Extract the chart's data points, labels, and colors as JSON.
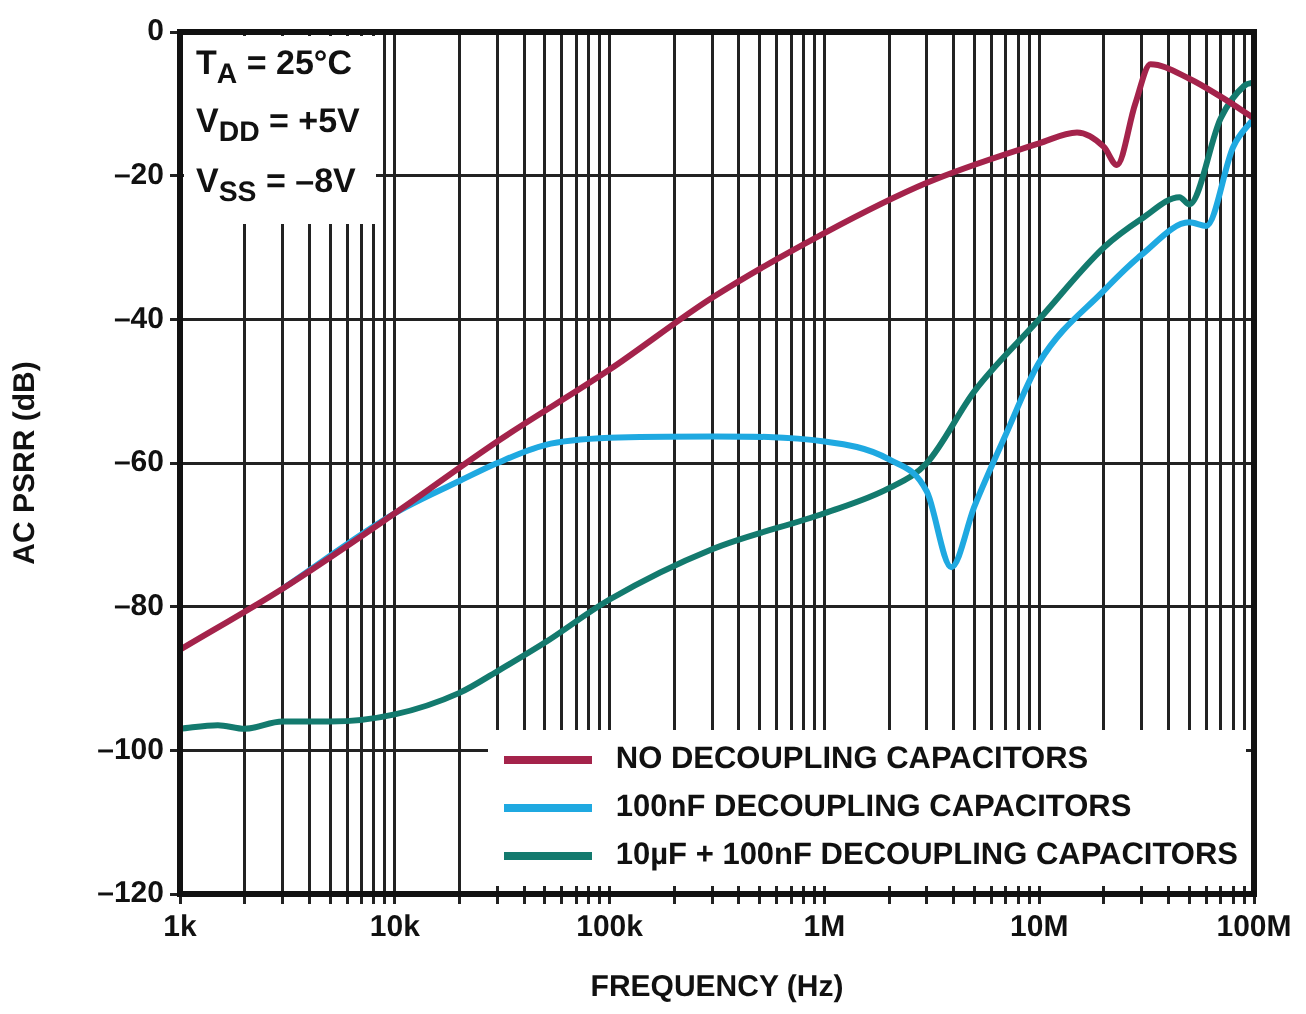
{
  "chart_data": {
    "type": "line",
    "xlabel": "FREQUENCY (Hz)",
    "ylabel": "AC PSRR (dB)",
    "log": "x",
    "grid": true,
    "legend": "bottom right",
    "annotations": [
      "T$_{A}$ = 25°C",
      "V$_{DD}$ = +5V",
      "V$_{SS}$ = –8V"
    ],
    "xlim": [
      1000,
      100000000
    ],
    "xticks": [
      {
        "value": 1000,
        "label": "1k"
      },
      {
        "value": 2000,
        "label": null
      },
      {
        "value": 3000,
        "label": null
      },
      {
        "value": 4000,
        "label": null
      },
      {
        "value": 5000,
        "label": null
      },
      {
        "value": 6000,
        "label": null
      },
      {
        "value": 7000,
        "label": null
      },
      {
        "value": 8000,
        "label": null
      },
      {
        "value": 9000,
        "label": null
      },
      {
        "value": 10000,
        "label": "10k"
      },
      {
        "value": 20000,
        "label": null
      },
      {
        "value": 30000,
        "label": null
      },
      {
        "value": 40000,
        "label": null
      },
      {
        "value": 50000,
        "label": null
      },
      {
        "value": 60000,
        "label": null
      },
      {
        "value": 70000,
        "label": null
      },
      {
        "value": 80000,
        "label": null
      },
      {
        "value": 90000,
        "label": null
      },
      {
        "value": 100000,
        "label": "100k"
      },
      {
        "value": 200000,
        "label": null
      },
      {
        "value": 300000,
        "label": null
      },
      {
        "value": 400000,
        "label": null
      },
      {
        "value": 500000,
        "label": null
      },
      {
        "value": 600000,
        "label": null
      },
      {
        "value": 700000,
        "label": null
      },
      {
        "value": 800000,
        "label": null
      },
      {
        "value": 900000,
        "label": null
      },
      {
        "value": 1000000,
        "label": "1M"
      },
      {
        "value": 2000000,
        "label": null
      },
      {
        "value": 3000000,
        "label": null
      },
      {
        "value": 4000000,
        "label": null
      },
      {
        "value": 5000000,
        "label": null
      },
      {
        "value": 6000000,
        "label": null
      },
      {
        "value": 7000000,
        "label": null
      },
      {
        "value": 8000000,
        "label": null
      },
      {
        "value": 9000000,
        "label": null
      },
      {
        "value": 10000000,
        "label": "10M"
      },
      {
        "value": 20000000,
        "label": null
      },
      {
        "value": 30000000,
        "label": null
      },
      {
        "value": 40000000,
        "label": null
      },
      {
        "value": 50000000,
        "label": null
      },
      {
        "value": 60000000,
        "label": null
      },
      {
        "value": 70000000,
        "label": null
      },
      {
        "value": 80000000,
        "label": null
      },
      {
        "value": 90000000,
        "label": null
      },
      {
        "value": 100000000,
        "label": "100M"
      }
    ],
    "ylim": [
      -120,
      0
    ],
    "yticks": [
      {
        "value": -120,
        "label": "–120"
      },
      {
        "value": -100,
        "label": "–100"
      },
      {
        "value": -80,
        "label": "–80"
      },
      {
        "value": -60,
        "label": "–60"
      },
      {
        "value": -40,
        "label": "–40"
      },
      {
        "value": -20,
        "label": "–20"
      },
      0
    ],
    "series": [
      {
        "name": "NO DECOUPLING CAPACITORS",
        "color": "#a4234b",
        "x": [
          1000,
          3000,
          10000,
          30000,
          100000,
          300000,
          1000000,
          3000000,
          10000000,
          15000000,
          20000000,
          23000000,
          28000000,
          33000000,
          50000000,
          70000000,
          100000000
        ],
        "values": [
          -86,
          -77.5,
          -67,
          -57,
          -47,
          -37,
          -28,
          -21,
          -15.5,
          -14,
          -16,
          -18.5,
          -10,
          -4.5,
          -6.5,
          -9,
          -12
        ]
      },
      {
        "name": "100nF DECOUPLING CAPACITORS",
        "color": "#1fa9e1",
        "x": [
          3000,
          10000,
          20000,
          30000,
          50000,
          100000,
          300000,
          1000000,
          2000000,
          3000000,
          3900000,
          5000000,
          7000000,
          10000000,
          20000000,
          30000000,
          50000000,
          60000000,
          80000000,
          100000000
        ],
        "values": [
          -77.5,
          -67,
          -62.5,
          -60,
          -57.5,
          -56.5,
          -56.3,
          -57,
          -59.5,
          -64,
          -74.5,
          -66,
          -56,
          -46,
          -36,
          -31,
          -26.5,
          -27,
          -16,
          -12
        ]
      },
      {
        "name": "10µF + 100nF DECOUPLING CAPACITORS",
        "color": "#137a6e",
        "x": [
          1000,
          1500,
          2000,
          3000,
          5000,
          10000,
          20000,
          30000,
          50000,
          100000,
          300000,
          1000000,
          2000000,
          3000000,
          5000000,
          10000000,
          20000000,
          30000000,
          45000000,
          50000000,
          70000000,
          90000000,
          100000000
        ],
        "values": [
          -97,
          -96.5,
          -97,
          -96,
          -96,
          -95,
          -92,
          -89,
          -85,
          -79,
          -72,
          -67,
          -63.5,
          -60,
          -50,
          -40,
          -30,
          -26,
          -23,
          -24,
          -12,
          -7.5,
          -7
        ]
      }
    ]
  }
}
